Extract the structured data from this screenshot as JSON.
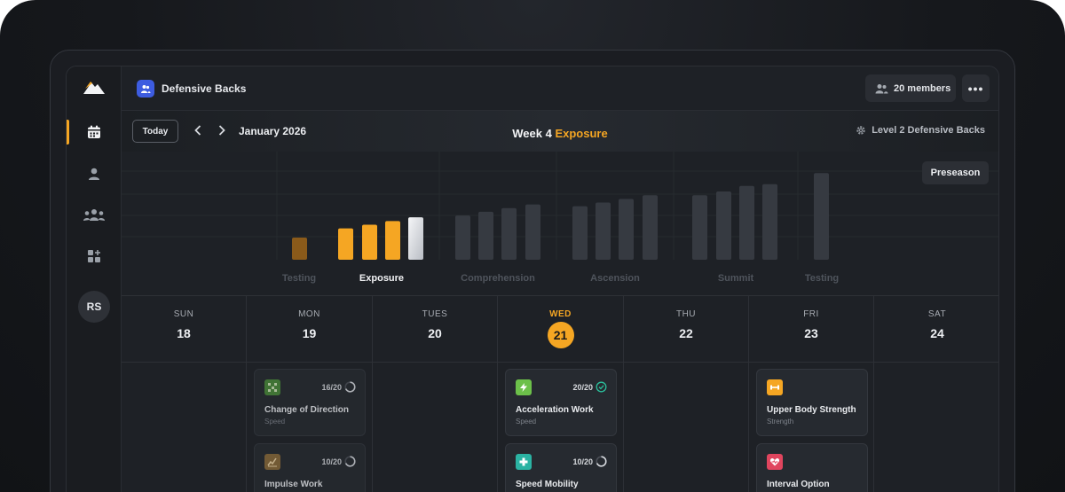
{
  "sidebar": {
    "logo": "mountain-logo",
    "items": [
      {
        "name": "calendar",
        "icon": "calendar-icon",
        "active": true
      },
      {
        "name": "athlete",
        "icon": "person-icon",
        "active": false
      },
      {
        "name": "team",
        "icon": "group-icon",
        "active": false
      },
      {
        "name": "apps",
        "icon": "apps-add-icon",
        "active": false
      }
    ],
    "avatar_initials": "RS"
  },
  "topbar": {
    "team_name": "Defensive Backs",
    "members_label": "20 members",
    "more_label": "•••"
  },
  "calendar_header": {
    "today_label": "Today",
    "prev_label": "‹",
    "next_label": "›",
    "month_label": "January 2026",
    "week_label": "Week 4",
    "phase_label": "Exposure",
    "level_label": "Level 2 Defensive Backs"
  },
  "chart": {
    "preseason_label": "Preseason",
    "phases": [
      {
        "label": "Testing",
        "active": false
      },
      {
        "label": "Exposure",
        "active": true
      },
      {
        "label": "Comprehension",
        "active": false
      },
      {
        "label": "Ascension",
        "active": false
      },
      {
        "label": "Summit",
        "active": false
      },
      {
        "label": "Testing",
        "active": false
      }
    ]
  },
  "chart_data": {
    "type": "bar",
    "phases": [
      "Testing",
      "Exposure",
      "Comprehension",
      "Ascension",
      "Summit",
      "Testing"
    ],
    "values": [
      24,
      34,
      38,
      42,
      46,
      48,
      52,
      56,
      60,
      58,
      62,
      66,
      70,
      70,
      74,
      80,
      82,
      94
    ],
    "bar_phase": [
      0,
      1,
      1,
      1,
      1,
      2,
      2,
      2,
      2,
      3,
      3,
      3,
      3,
      4,
      4,
      4,
      4,
      5
    ],
    "bar_state": [
      "past",
      "current",
      "current",
      "current",
      "selected",
      "future",
      "future",
      "future",
      "future",
      "future",
      "future",
      "future",
      "future",
      "future",
      "future",
      "future",
      "future",
      "future"
    ],
    "colors": {
      "past": "#8a5a1a",
      "current": "#f5a623",
      "selected": "#e8eaee",
      "future": "#363a41"
    }
  },
  "days": [
    {
      "name": "SUN",
      "num": "18",
      "today": false
    },
    {
      "name": "MON",
      "num": "19",
      "today": false
    },
    {
      "name": "TUES",
      "num": "20",
      "today": false
    },
    {
      "name": "WED",
      "num": "21",
      "today": true
    },
    {
      "name": "THU",
      "num": "22",
      "today": false
    },
    {
      "name": "FRI",
      "num": "23",
      "today": false
    },
    {
      "name": "SAT",
      "num": "24",
      "today": false
    }
  ],
  "cards": {
    "mon": [
      {
        "title": "Change of Direction",
        "sub": "Speed",
        "count": "16/20",
        "icon": "pattern-icon",
        "color": "#4a8a3a",
        "status": "in-progress"
      },
      {
        "title": "Impulse Work",
        "sub": "",
        "count": "10/20",
        "icon": "chart-icon",
        "color": "#8a6a3a",
        "status": "in-progress"
      }
    ],
    "wed": [
      {
        "title": "Acceleration Work",
        "sub": "Speed",
        "count": "20/20",
        "icon": "bolt-icon",
        "color": "#6cc04a",
        "status": "complete"
      },
      {
        "title": "Speed Mobility",
        "sub": "",
        "count": "10/20",
        "icon": "plus-icon",
        "color": "#2bb3a3",
        "status": "in-progress"
      }
    ],
    "fri": [
      {
        "title": "Upper Body Strength",
        "sub": "Strength",
        "icon": "dumbbell-icon",
        "color": "#f5a623"
      },
      {
        "title": "Interval Option",
        "sub": "",
        "icon": "heart-icon",
        "color": "#e0455e"
      }
    ]
  }
}
